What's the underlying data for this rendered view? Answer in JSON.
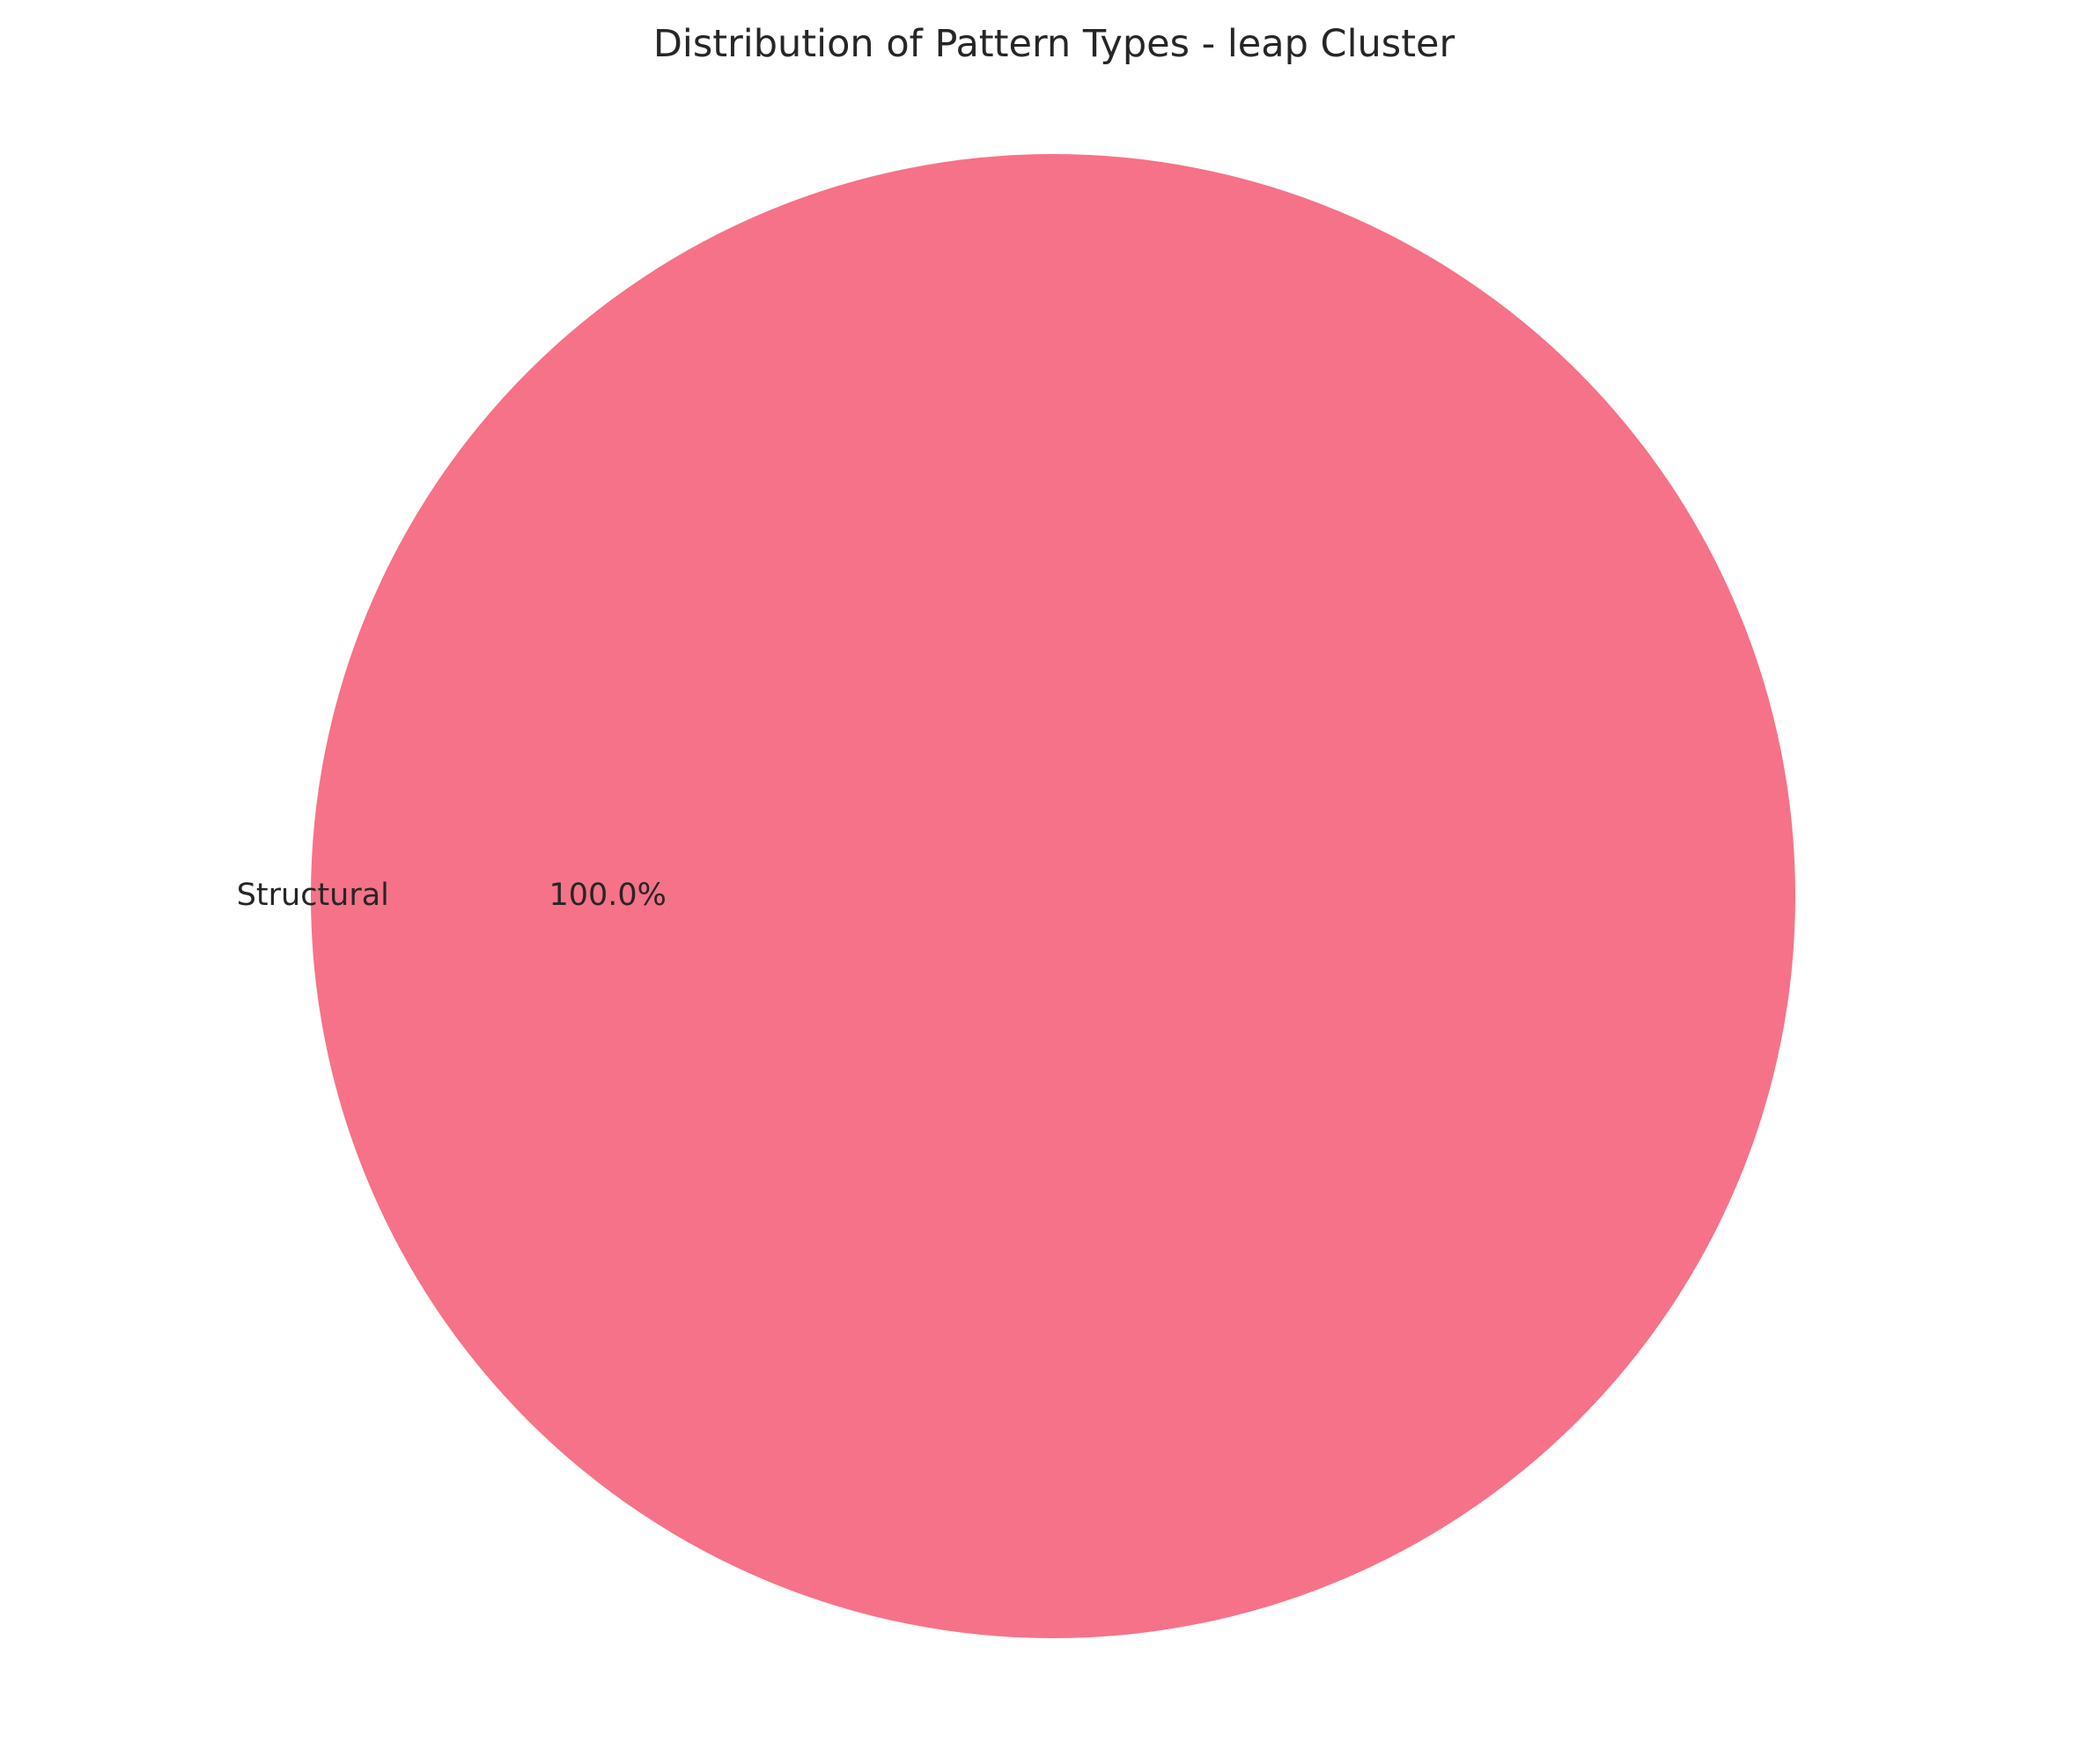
{
  "chart_data": {
    "type": "pie",
    "title": "Distribution of Pattern Types - leap Cluster",
    "slices": [
      {
        "label": "Structural",
        "value": 100.0,
        "percent_label": "100.0%",
        "color": "#f67288"
      }
    ]
  }
}
